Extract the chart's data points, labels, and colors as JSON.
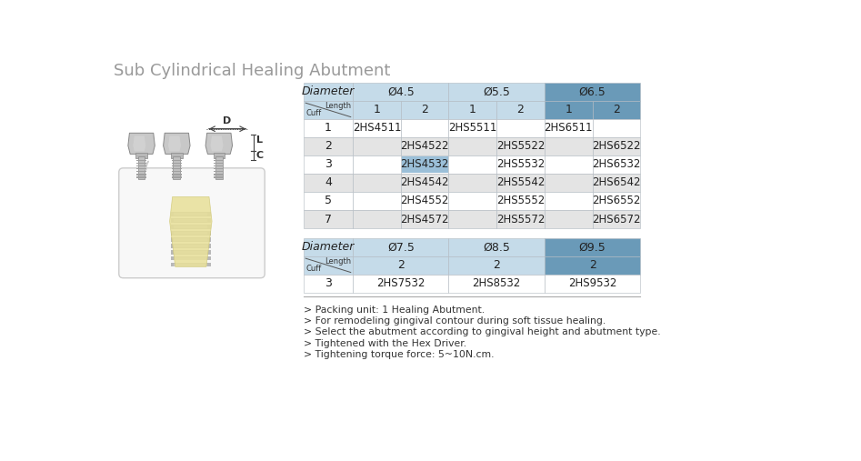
{
  "title": "Sub Cylindrical Healing Abutment",
  "bg_color": "#ffffff",
  "table1": {
    "data_rows": [
      [
        "1",
        "2HS4511",
        "",
        "2HS5511",
        "",
        "2HS6511",
        ""
      ],
      [
        "2",
        "",
        "2HS4522",
        "",
        "2HS5522",
        "",
        "2HS6522"
      ],
      [
        "3",
        "",
        "2HS4532",
        "",
        "2HS5532",
        "",
        "2HS6532"
      ],
      [
        "4",
        "",
        "2HS4542",
        "",
        "2HS5542",
        "",
        "2HS6542"
      ],
      [
        "5",
        "",
        "2HS4552",
        "",
        "2HS5552",
        "",
        "2HS6552"
      ],
      [
        "7",
        "",
        "2HS4572",
        "",
        "2HS5572",
        "",
        "2HS6572"
      ]
    ]
  },
  "table2": {
    "data_rows": [
      [
        "3",
        "2HS7532",
        "2HS8532",
        "2HS9532"
      ]
    ]
  },
  "notes": [
    "> Packing unit: 1 Healing Abutment.",
    "> For remodeling gingival contour during soft tissue healing.",
    "> Select the abutment according to gingival height and abutment type.",
    "> Tightened with the Hex Driver.",
    "> Tightening torque force: 5~10N.cm."
  ],
  "color_header_dark": "#6a9ab8",
  "color_header_light": "#c5dbe9",
  "color_row_odd": "#ffffff",
  "color_row_even": "#e4e4e4",
  "color_highlight": "#9bbfd8",
  "color_text": "#333333",
  "color_title": "#999999",
  "color_border": "#b0b8c0"
}
